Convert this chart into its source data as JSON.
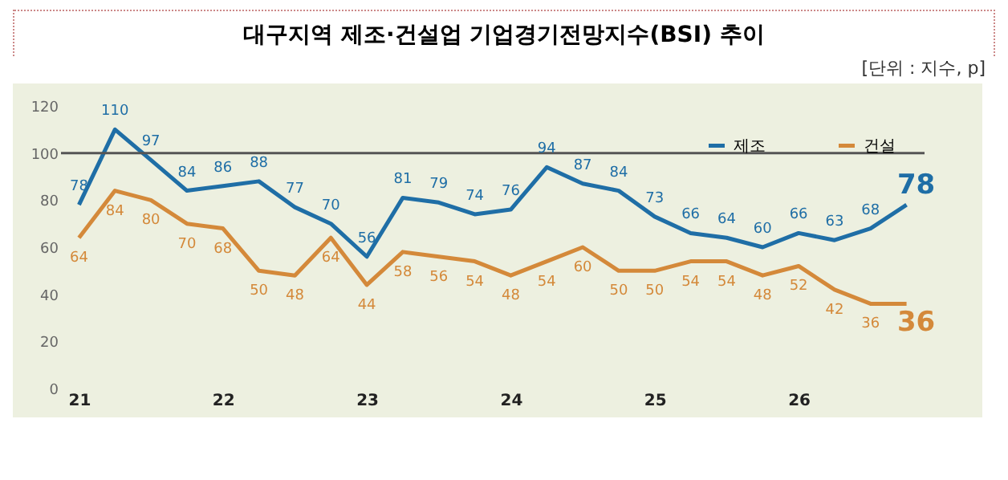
{
  "chart_data": {
    "type": "line",
    "title": "대구지역 제조·건설업 기업경기전망지수(BSI) 추이",
    "annotations": [
      "[단위 : 지수, p]"
    ],
    "categories": [
      "21",
      null,
      null,
      null,
      "22",
      null,
      null,
      null,
      "23",
      null,
      null,
      null,
      "24",
      null,
      null,
      null,
      "25",
      null,
      null,
      null,
      "26",
      null,
      null,
      null
    ],
    "series": [
      {
        "name": "제조",
        "color": "#1f6ea6",
        "values": [
          78,
          110,
          97,
          84,
          86,
          88,
          77,
          70,
          56,
          81,
          79,
          74,
          76,
          94,
          87,
          84,
          73,
          66,
          64,
          60,
          66,
          63,
          68,
          78
        ]
      },
      {
        "name": "건설",
        "color": "#d4893a",
        "values": [
          64,
          84,
          80,
          70,
          68,
          50,
          48,
          64,
          44,
          58,
          56,
          54,
          48,
          54,
          60,
          50,
          50,
          54,
          54,
          48,
          52,
          42,
          36,
          36
        ]
      }
    ],
    "ylim": [
      0,
      120
    ],
    "yticks": [
      0,
      20,
      40,
      60,
      80,
      100,
      120
    ],
    "ref_lines": [
      {
        "axis": "y",
        "value": 100,
        "color": "#555555"
      }
    ],
    "data_labels": true,
    "legend": "top right",
    "grid": false,
    "marker": "none",
    "line_style": "solid"
  }
}
